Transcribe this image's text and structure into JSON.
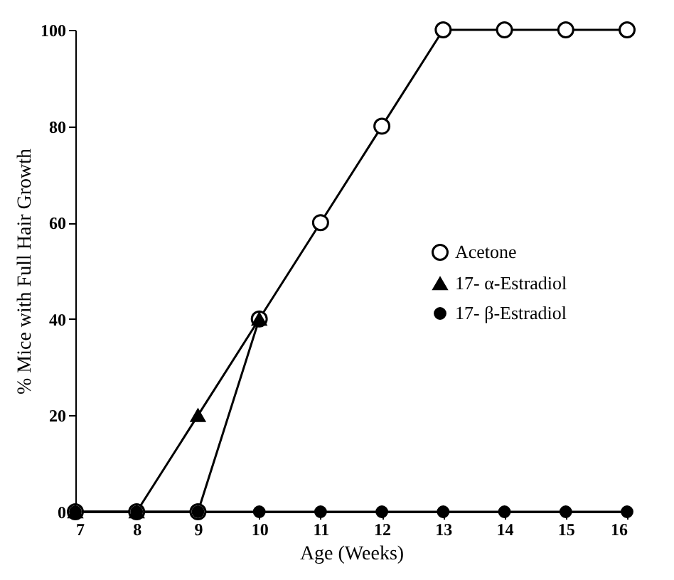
{
  "chart_data": {
    "type": "line",
    "xlabel": "Age (Weeks)",
    "ylabel": "% Mice with Full Hair Growth",
    "x": [
      7,
      8,
      9,
      10,
      11,
      12,
      13,
      14,
      15,
      16
    ],
    "series": [
      {
        "name": "Acetone",
        "color": "#000000",
        "marker": "circle-open",
        "values": [
          0,
          0,
          0,
          40,
          60,
          80,
          100,
          100,
          100,
          100
        ]
      },
      {
        "name": "17- α-Estradiol",
        "color": "#000000",
        "marker": "triangle",
        "values": [
          0,
          0,
          20,
          40,
          null,
          null,
          null,
          null,
          null,
          null
        ]
      },
      {
        "name": "17- β-Estradiol",
        "color": "#000000",
        "marker": "circle",
        "values": [
          0,
          0,
          0,
          0,
          0,
          0,
          0,
          0,
          0,
          0
        ]
      }
    ],
    "xlim": [
      7,
      16
    ],
    "xticks": [
      7,
      8,
      9,
      10,
      11,
      12,
      13,
      14,
      15,
      16
    ],
    "ylim": [
      0,
      100
    ],
    "yticks": [
      0,
      20,
      40,
      60,
      80,
      100
    ],
    "grid": false,
    "legend": "right",
    "line_style": "solid"
  }
}
